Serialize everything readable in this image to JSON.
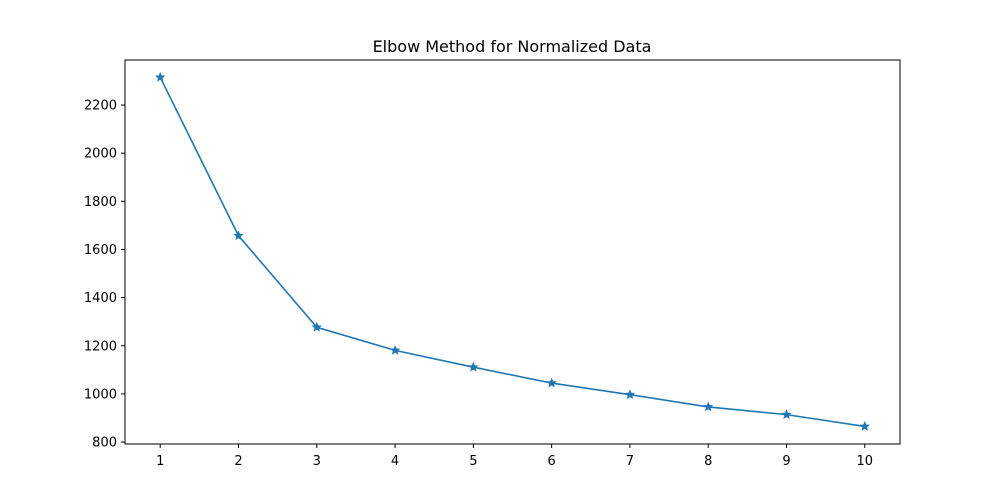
{
  "chart_data": {
    "type": "line",
    "title": "Elbow Method for Normalized Data",
    "xlabel": "",
    "ylabel": "",
    "x": [
      1,
      2,
      3,
      4,
      5,
      6,
      7,
      8,
      9,
      10
    ],
    "series": [
      {
        "values": [
          2315,
          1657,
          1277,
          1181,
          1111,
          1045,
          997,
          946,
          914,
          865
        ],
        "color": "#1f77b4",
        "marker": "star"
      }
    ],
    "xticks": [
      "1",
      "2",
      "3",
      "4",
      "5",
      "6",
      "7",
      "8",
      "9",
      "10"
    ],
    "yticks": [
      "800",
      "1000",
      "1200",
      "1400",
      "1600",
      "1800",
      "2000",
      "2200"
    ],
    "xlim": [
      0.55,
      10.45
    ],
    "ylim": [
      792,
      2387
    ],
    "grid": false,
    "legend": "none"
  }
}
